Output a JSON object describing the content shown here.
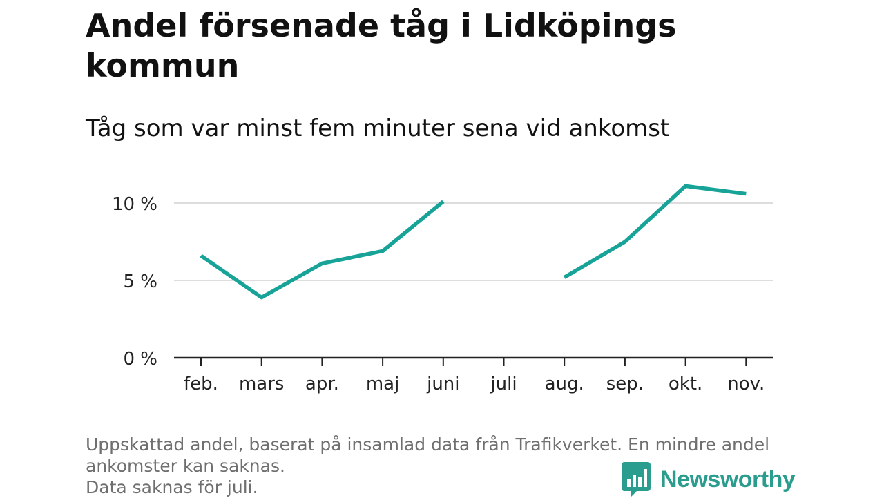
{
  "header": {
    "title": "Andel försenade tåg i Lidköpings kommun",
    "subtitle": "Tåg som var minst fem minuter sena vid ankomst"
  },
  "chart_data": {
    "type": "line",
    "categories": [
      "feb.",
      "mars",
      "apr.",
      "maj",
      "juni",
      "juli",
      "aug.",
      "sep.",
      "okt.",
      "nov."
    ],
    "series": [
      {
        "values": [
          6.6,
          3.9,
          6.1,
          6.9,
          10.1,
          null,
          5.2,
          7.5,
          11.1,
          10.6
        ]
      }
    ],
    "yticks": [
      0,
      5,
      10
    ],
    "ytick_labels": [
      "0 %",
      "5 %",
      "10 %"
    ],
    "ylim": [
      0,
      12
    ],
    "grid": true,
    "line_color": "#17a398"
  },
  "footnote": {
    "line1": "Uppskattad andel, baserat på insamlad data från Trafikverket. En mindre andel",
    "line2": "ankomster kan saknas.",
    "line3": "Data saknas för juli."
  },
  "brand": {
    "name": "Newsworthy",
    "icon": "bar-chart-speech-bubble-icon",
    "color": "#2a9d8f"
  }
}
